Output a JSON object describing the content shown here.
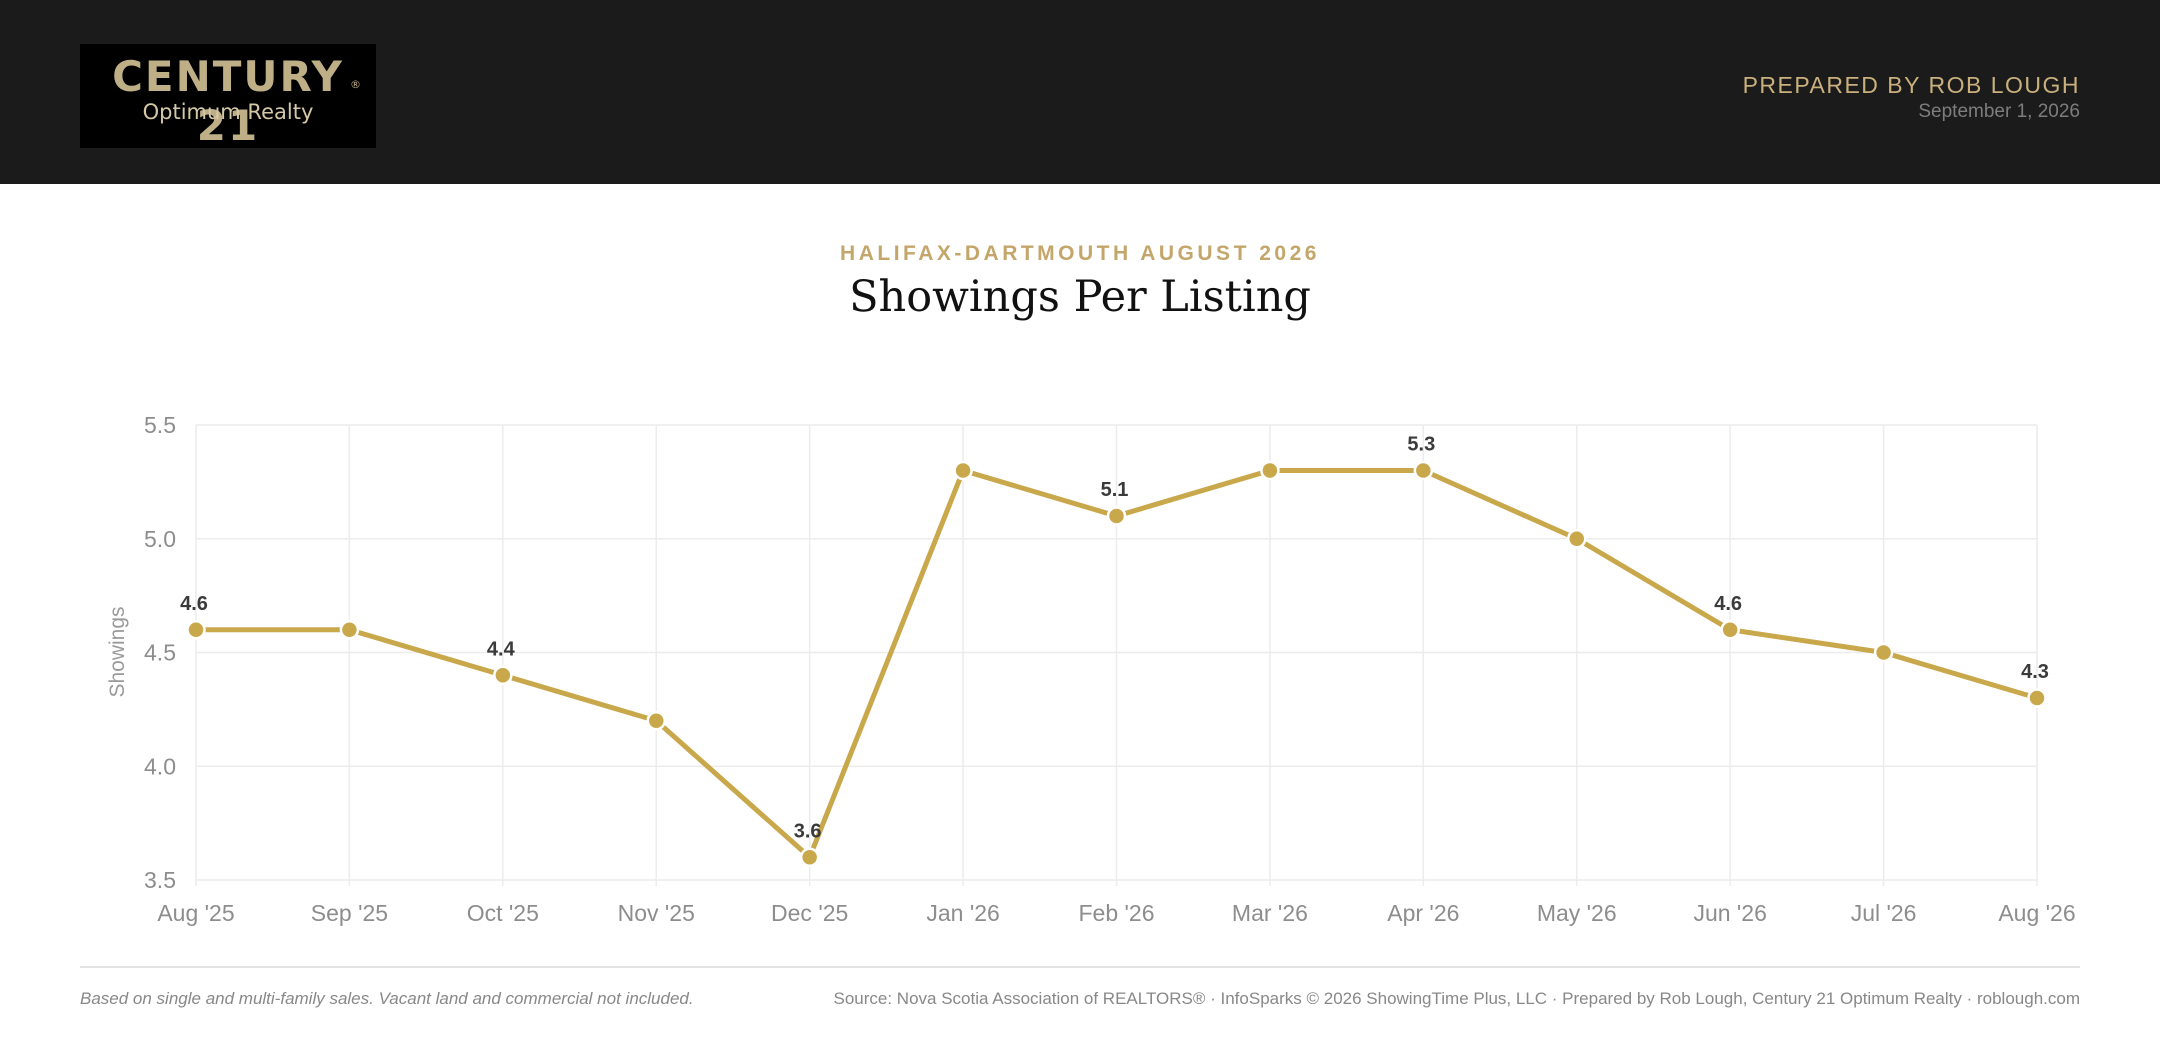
{
  "header": {
    "logo_name": "CENTURY 21",
    "logo_reg": "®",
    "logo_sub": "Optimum Realty",
    "prepared_by": "PREPARED BY ROB LOUGH",
    "date": "September 1, 2026"
  },
  "heading": {
    "kicker": "HALIFAX-DARTMOUTH AUGUST 2026",
    "title": "Showings Per Listing"
  },
  "chart_data": {
    "type": "line",
    "title": "Showings Per Listing",
    "xlabel": "",
    "ylabel": "Showings",
    "categories": [
      "Aug '25",
      "Sep '25",
      "Oct '25",
      "Nov '25",
      "Dec '25",
      "Jan '26",
      "Feb '26",
      "Mar '26",
      "Apr '26",
      "May '26",
      "Jun '26",
      "Jul '26",
      "Aug '26"
    ],
    "series": [
      {
        "values": [
          4.6,
          4.6,
          4.4,
          4.2,
          3.6,
          5.3,
          5.1,
          5.3,
          5.3,
          5.0,
          4.6,
          4.5,
          4.3
        ],
        "color": "#c9a84c",
        "data_labels": [
          "4.6",
          "",
          "4.4",
          "",
          "3.6",
          "",
          "5.1",
          "",
          "5.3",
          "",
          "4.6",
          "",
          "4.3"
        ]
      }
    ],
    "ylim": [
      3.5,
      5.5
    ],
    "yticks": [
      "3.5",
      "4.0",
      "4.5",
      "5.0",
      "5.5"
    ],
    "grid": true,
    "legend": "none"
  },
  "footer": {
    "note": "Based on single and multi-family sales. Vacant land and commercial not included.",
    "source": "Source: Nova Scotia Association of REALTORS® · InfoSparks © 2026 ShowingTime Plus, LLC · Prepared by Rob Lough, Century 21 Optimum Realty · roblough.com"
  }
}
